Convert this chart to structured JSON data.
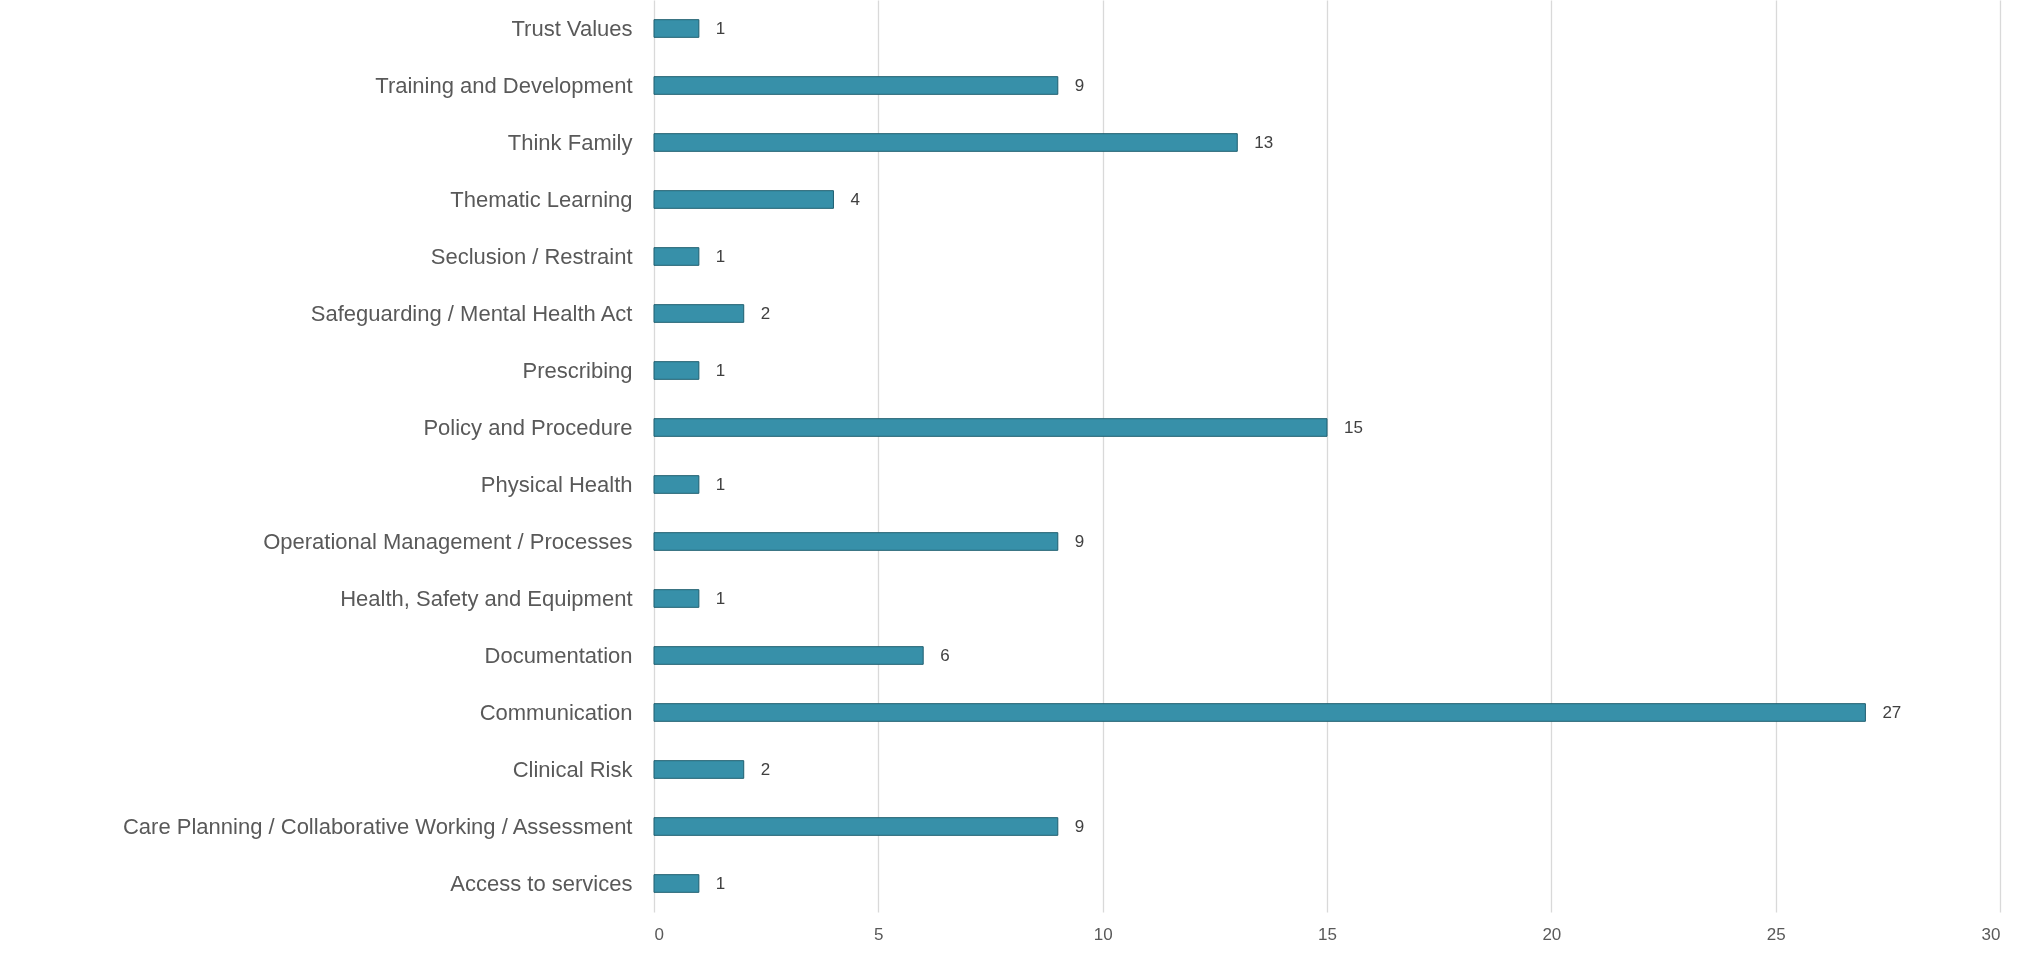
{
  "chart_data": {
    "type": "bar",
    "orientation": "horizontal",
    "categories": [
      "Trust Values",
      "Training and Development",
      "Think Family",
      "Thematic Learning",
      "Seclusion / Restraint",
      "Safeguarding / Mental Health Act",
      "Prescribing",
      "Policy and Procedure",
      "Physical Health",
      "Operational Management / Processes",
      "Health, Safety and Equipment",
      "Documentation",
      "Communication",
      "Clinical Risk",
      "Care Planning / Collaborative Working / Assessment",
      "Access to services"
    ],
    "values": [
      1,
      9,
      13,
      4,
      1,
      2,
      1,
      15,
      1,
      9,
      1,
      6,
      27,
      2,
      9,
      1
    ],
    "color": "#3790a9",
    "xlim": [
      0,
      30
    ],
    "xticks": [
      0,
      5,
      10,
      15,
      20,
      25,
      30
    ],
    "grid": "x",
    "data_labels": true
  }
}
